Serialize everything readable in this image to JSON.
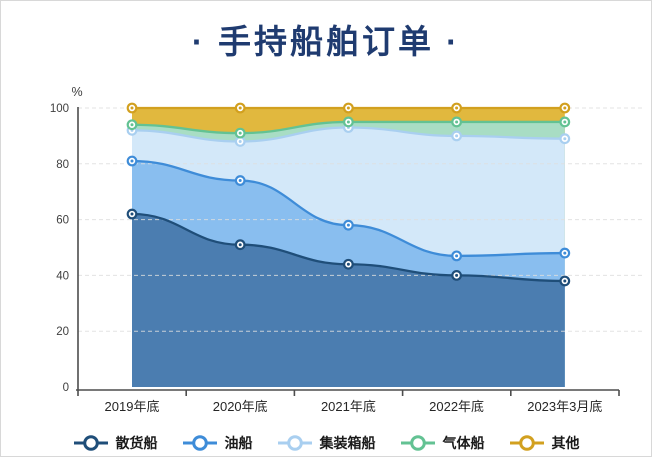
{
  "title": "· 手持船舶订单 ·",
  "y_axis": {
    "unit_label": "%",
    "ticks": [
      0,
      20,
      40,
      60,
      80,
      100
    ]
  },
  "chart_data": {
    "type": "area",
    "stacking": "percent-cumulative",
    "title": "手持船舶订单",
    "ylabel": "%",
    "ylim": [
      0,
      100
    ],
    "grid": "dashed-horizontal",
    "legend_position": "bottom",
    "categories": [
      "2019年底",
      "2020年底",
      "2021年底",
      "2022年底",
      "2023年3月底"
    ],
    "series": [
      {
        "name": "散货船",
        "values": [
          62,
          51,
          44,
          40,
          38
        ],
        "cumulative": [
          62,
          51,
          44,
          40,
          38
        ],
        "line_color": "#1F4E79",
        "fill_color": "#4B7DB0"
      },
      {
        "name": "油船",
        "values": [
          19,
          23,
          14,
          7,
          10
        ],
        "cumulative": [
          81,
          74,
          58,
          47,
          48
        ],
        "line_color": "#3E8CD8",
        "fill_color": "#89BEEF"
      },
      {
        "name": "集装箱船",
        "values": [
          11,
          14,
          35,
          43,
          41
        ],
        "cumulative": [
          92,
          88,
          93,
          90,
          89
        ],
        "line_color": "#A9CFF0",
        "fill_color": "#D3E8F9"
      },
      {
        "name": "气体船",
        "values": [
          2,
          3,
          2,
          5,
          6
        ],
        "cumulative": [
          94,
          91,
          95,
          95,
          95
        ],
        "line_color": "#63C293",
        "fill_color": "#A8DDC4"
      },
      {
        "name": "其他",
        "values": [
          6,
          9,
          5,
          5,
          5
        ],
        "cumulative": [
          100,
          100,
          100,
          100,
          100
        ],
        "line_color": "#D2A01F",
        "fill_color": "#E1B83E"
      }
    ]
  },
  "colors": {
    "title": "#1F3B70",
    "axis": "#4d4d4d",
    "grid": "#dedede",
    "background": "#ffffff"
  }
}
